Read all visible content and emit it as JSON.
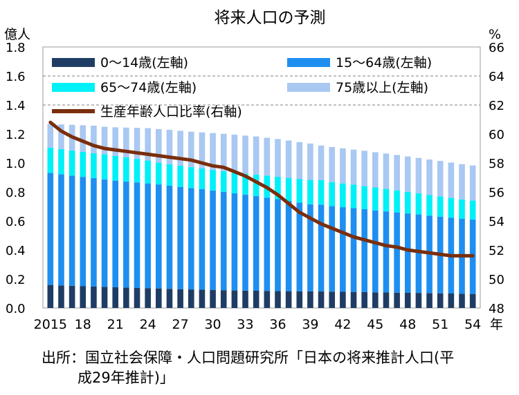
{
  "chart_data": {
    "type": "bar",
    "title": "将来人口の予測",
    "left_unit": "億人",
    "right_unit": "%",
    "x_suffix": "年",
    "stacked": true,
    "years": [
      2015,
      2016,
      2017,
      2018,
      2019,
      2020,
      2021,
      2022,
      2023,
      2024,
      2025,
      2026,
      2027,
      2028,
      2029,
      2030,
      2031,
      2032,
      2033,
      2034,
      2035,
      2036,
      2037,
      2038,
      2039,
      2040,
      2041,
      2042,
      2043,
      2044,
      2045,
      2046,
      2047,
      2048,
      2049,
      2050,
      2051,
      2052,
      2053,
      2054
    ],
    "x_tick_labels": [
      {
        "year": 2015,
        "label": "2015"
      },
      {
        "year": 2018,
        "label": "18"
      },
      {
        "year": 2021,
        "label": "21"
      },
      {
        "year": 2024,
        "label": "24"
      },
      {
        "year": 2027,
        "label": "27"
      },
      {
        "year": 2030,
        "label": "30"
      },
      {
        "year": 2033,
        "label": "33"
      },
      {
        "year": 2036,
        "label": "36"
      },
      {
        "year": 2039,
        "label": "39"
      },
      {
        "year": 2042,
        "label": "42"
      },
      {
        "year": 2045,
        "label": "45"
      },
      {
        "year": 2048,
        "label": "48"
      },
      {
        "year": 2051,
        "label": "51"
      },
      {
        "year": 2054,
        "label": "54"
      }
    ],
    "left_axis": {
      "min": 0.0,
      "max": 1.8,
      "step": 0.2,
      "ticks": [
        "0.0",
        "0.2",
        "0.4",
        "0.6",
        "0.8",
        "1.0",
        "1.2",
        "1.4",
        "1.6",
        "1.8"
      ]
    },
    "right_axis": {
      "min": 48,
      "max": 66,
      "step": 2,
      "ticks": [
        "48",
        "50",
        "52",
        "54",
        "56",
        "58",
        "60",
        "62",
        "64",
        "66"
      ]
    },
    "gridlines": [
      1.6,
      1.4
    ],
    "series": [
      {
        "name": "0～14歳(左軸)",
        "axis": "left",
        "color": "#1f3d64",
        "values": [
          0.159,
          0.156,
          0.153,
          0.15,
          0.148,
          0.146,
          0.143,
          0.141,
          0.138,
          0.136,
          0.135,
          0.132,
          0.13,
          0.128,
          0.126,
          0.124,
          0.123,
          0.121,
          0.12,
          0.119,
          0.118,
          0.117,
          0.116,
          0.115,
          0.115,
          0.114,
          0.113,
          0.112,
          0.111,
          0.11,
          0.108,
          0.107,
          0.106,
          0.105,
          0.104,
          0.102,
          0.101,
          0.1,
          0.098,
          0.097
        ]
      },
      {
        "name": "15～64歳(左軸)",
        "axis": "left",
        "color": "#1e8ff0",
        "values": [
          0.772,
          0.766,
          0.76,
          0.754,
          0.748,
          0.741,
          0.735,
          0.731,
          0.728,
          0.723,
          0.717,
          0.711,
          0.705,
          0.699,
          0.693,
          0.686,
          0.678,
          0.67,
          0.662,
          0.653,
          0.643,
          0.633,
          0.622,
          0.611,
          0.6,
          0.599,
          0.589,
          0.583,
          0.577,
          0.571,
          0.565,
          0.559,
          0.553,
          0.547,
          0.541,
          0.535,
          0.529,
          0.523,
          0.518,
          0.513
        ]
      },
      {
        "name": "65～74歳(左軸)",
        "axis": "left",
        "color": "#00f0f8",
        "values": [
          0.175,
          0.174,
          0.173,
          0.172,
          0.171,
          0.173,
          0.17,
          0.166,
          0.162,
          0.158,
          0.15,
          0.148,
          0.146,
          0.144,
          0.143,
          0.142,
          0.142,
          0.143,
          0.145,
          0.148,
          0.151,
          0.155,
          0.159,
          0.164,
          0.168,
          0.168,
          0.166,
          0.164,
          0.162,
          0.16,
          0.158,
          0.155,
          0.152,
          0.149,
          0.146,
          0.142,
          0.14,
          0.136,
          0.133,
          0.131
        ]
      },
      {
        "name": "75歳以上(左軸)",
        "axis": "left",
        "color": "#a9c8f2",
        "values": [
          0.163,
          0.17,
          0.177,
          0.184,
          0.19,
          0.19,
          0.198,
          0.206,
          0.214,
          0.223,
          0.232,
          0.238,
          0.241,
          0.245,
          0.249,
          0.254,
          0.258,
          0.261,
          0.262,
          0.263,
          0.262,
          0.26,
          0.258,
          0.254,
          0.251,
          0.239,
          0.242,
          0.242,
          0.242,
          0.243,
          0.243,
          0.244,
          0.244,
          0.244,
          0.244,
          0.245,
          0.244,
          0.244,
          0.243,
          0.242
        ]
      },
      {
        "name": "生産年齢人口比率(右軸)",
        "axis": "right",
        "type": "line",
        "color": "#7a2e0c",
        "values": [
          60.8,
          60.2,
          59.8,
          59.5,
          59.2,
          59.0,
          58.9,
          58.8,
          58.7,
          58.6,
          58.5,
          58.4,
          58.3,
          58.2,
          58.0,
          57.8,
          57.7,
          57.4,
          57.1,
          56.7,
          56.3,
          55.8,
          55.2,
          54.6,
          54.2,
          53.8,
          53.5,
          53.2,
          52.9,
          52.7,
          52.5,
          52.3,
          52.2,
          52.0,
          51.9,
          51.8,
          51.7,
          51.6,
          51.6,
          51.6
        ]
      }
    ]
  },
  "source_lines": [
    "出所：国立社会保障・人口問題研究所「日本の将来推計人口(平",
    "成29年推計)」"
  ]
}
